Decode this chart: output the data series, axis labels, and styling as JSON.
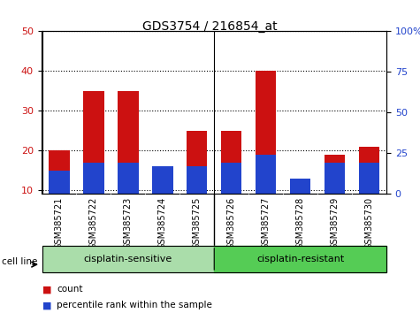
{
  "title": "GDS3754 / 216854_at",
  "samples": [
    "GSM385721",
    "GSM385722",
    "GSM385723",
    "GSM385724",
    "GSM385725",
    "GSM385726",
    "GSM385727",
    "GSM385728",
    "GSM385729",
    "GSM385730"
  ],
  "count": [
    20,
    35,
    35,
    15,
    25,
    25,
    40,
    12,
    19,
    21
  ],
  "percentile": [
    15,
    17,
    17,
    16,
    16,
    17,
    19,
    13,
    17,
    17
  ],
  "bar_color_red": "#cc1111",
  "bar_color_blue": "#2244cc",
  "ylim_left": [
    9,
    50
  ],
  "ylim_right": [
    0,
    100
  ],
  "yticks_left": [
    10,
    20,
    30,
    40,
    50
  ],
  "yticks_right": [
    0,
    25,
    50,
    75,
    100
  ],
  "ytick_labels_right": [
    "0",
    "25",
    "50",
    "75",
    "100%"
  ],
  "groups": [
    {
      "label": "cisplatin-sensitive",
      "start": 0,
      "end": 4,
      "color": "#aaddaa"
    },
    {
      "label": "cisplatin-resistant",
      "start": 5,
      "end": 9,
      "color": "#55cc55"
    }
  ],
  "group_label_prefix": "cell line",
  "legend_count": "count",
  "legend_pct": "percentile rank within the sample",
  "bar_width": 0.6,
  "plot_bg": "#ffffff",
  "axis_label_color_left": "#cc1111",
  "axis_label_color_right": "#2244cc",
  "tick_area_bg": "#cccccc"
}
